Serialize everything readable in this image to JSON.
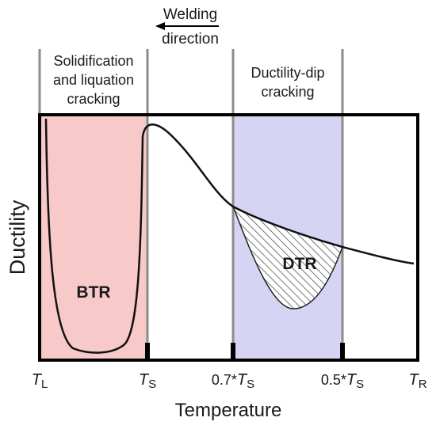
{
  "header": {
    "welding_line1": "Welding",
    "welding_line2": "direction",
    "region_left_line1": "Solidification",
    "region_left_line2": "and liquation",
    "region_left_line3": "cracking",
    "region_right_line1": "Ductility-dip",
    "region_right_line2": "cracking"
  },
  "zones": {
    "btr": "BTR",
    "dtr": "DTR"
  },
  "axes": {
    "ylabel": "Ductility",
    "xlabel": "Temperature"
  },
  "ticks": {
    "tl_main": "T",
    "tl_sub": "L",
    "ts_main": "T",
    "ts_sub": "S",
    "ts07_prefix": "0.7*",
    "ts07_main": "T",
    "ts07_sub": "S",
    "ts05_prefix": "0.5*",
    "ts05_main": "T",
    "ts05_sub": "S",
    "tr_main": "T",
    "tr_sub": "R"
  },
  "colors": {
    "btr_fill": "#f7c9c9",
    "dtr_fill": "#d5d5f3",
    "frame": "#000000",
    "divider": "#8c8c8c",
    "hatch": "#555555"
  }
}
